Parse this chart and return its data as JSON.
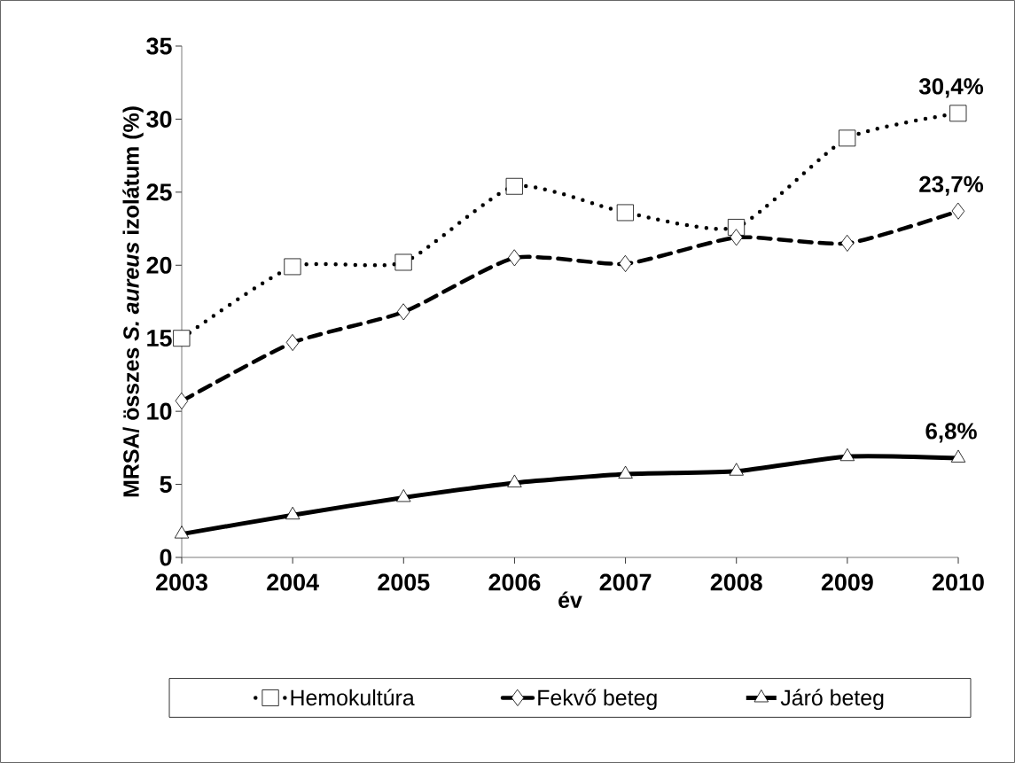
{
  "chart_data": {
    "type": "line",
    "categories": [
      "2003",
      "2004",
      "2005",
      "2006",
      "2007",
      "2008",
      "2009",
      "2010"
    ],
    "xlabel": "év",
    "ylabel": "MRSA/ összes *S. aureus* izolátum (%)",
    "ylim": [
      0,
      35
    ],
    "yticks": [
      0,
      5,
      10,
      15,
      20,
      25,
      30,
      35
    ],
    "series": [
      {
        "name": "Hemokultúra",
        "color": "#000000",
        "marker": "square",
        "line_style": "dotted",
        "values": [
          15.0,
          19.9,
          20.2,
          25.4,
          23.6,
          22.6,
          28.7,
          30.4
        ]
      },
      {
        "name": "Fekvő beteg",
        "color": "#000000",
        "marker": "diamond",
        "line_style": "dashed",
        "values": [
          10.7,
          14.7,
          16.8,
          20.5,
          20.1,
          21.9,
          21.5,
          23.7
        ]
      },
      {
        "name": "Járó beteg",
        "color": "#000000",
        "marker": "triangle",
        "line_style": "solid",
        "values": [
          1.6,
          2.9,
          4.1,
          5.1,
          5.7,
          5.9,
          6.9,
          6.8
        ]
      }
    ],
    "annotations": [
      {
        "text": "30,4%",
        "x": "2010",
        "y": 30.4
      },
      {
        "text": "23,7%",
        "x": "2010",
        "y": 23.7
      },
      {
        "text": "6,8%",
        "x": "2010",
        "y": 6.8
      }
    ],
    "legend": "bottom",
    "grid": false
  }
}
